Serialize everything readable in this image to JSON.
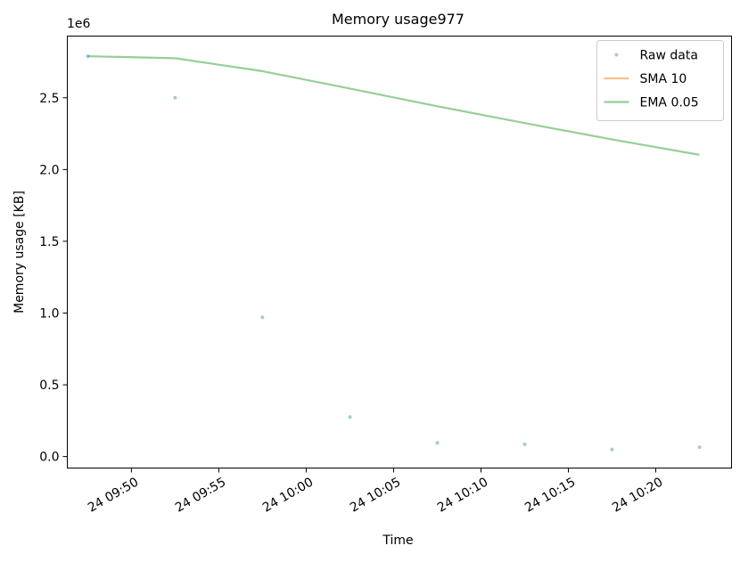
{
  "chart_data": {
    "type": "line",
    "title": "Memory usage977",
    "xlabel": "Time",
    "ylabel": "Memory usage [KB]",
    "y_offset_label": "1e6",
    "y_scale_factor": 1000000,
    "ylim": [
      -80000,
      2930000
    ],
    "xlim": [
      "2024-01-24 09:46:20",
      "2024-01-24 10:24:20"
    ],
    "x_ticks": [
      {
        "t": "2024-01-24 09:50:00",
        "label": "24 09:50"
      },
      {
        "t": "2024-01-24 09:55:00",
        "label": "24 09:55"
      },
      {
        "t": "2024-01-24 10:00:00",
        "label": "24 10:00"
      },
      {
        "t": "2024-01-24 10:05:00",
        "label": "24 10:05"
      },
      {
        "t": "2024-01-24 10:10:00",
        "label": "24 10:10"
      },
      {
        "t": "2024-01-24 10:15:00",
        "label": "24 10:15"
      },
      {
        "t": "2024-01-24 10:20:00",
        "label": "24 10:20"
      }
    ],
    "y_ticks": [
      {
        "v": 0,
        "label": "0.0"
      },
      {
        "v": 500000,
        "label": "0.5"
      },
      {
        "v": 1000000,
        "label": "1.0"
      },
      {
        "v": 1500000,
        "label": "1.5"
      },
      {
        "v": 2000000,
        "label": "2.0"
      },
      {
        "v": 2500000,
        "label": "2.5"
      }
    ],
    "legend_position": "top-right",
    "grid": false,
    "series": [
      {
        "name": "Raw data",
        "kind": "points",
        "color": "#1f77b4",
        "x": [
          "2024-01-24 09:47:30",
          "2024-01-24 09:52:30",
          "2024-01-24 09:57:30",
          "2024-01-24 10:02:30",
          "2024-01-24 10:07:30",
          "2024-01-24 10:12:30",
          "2024-01-24 10:17:30",
          "2024-01-24 10:22:30"
        ],
        "y": [
          2790000,
          2500000,
          970000,
          275000,
          95000,
          85000,
          50000,
          65000
        ]
      },
      {
        "name": "SMA 10",
        "kind": "line",
        "color": "#ff7f0e",
        "x": [],
        "y": []
      },
      {
        "name": "EMA 0.05",
        "kind": "line",
        "color": "#2ca02c",
        "x": [
          "2024-01-24 09:47:30",
          "2024-01-24 09:52:30",
          "2024-01-24 09:57:30",
          "2024-01-24 10:02:30",
          "2024-01-24 10:07:30",
          "2024-01-24 10:12:30",
          "2024-01-24 10:17:30",
          "2024-01-24 10:22:30"
        ],
        "y": [
          2790000,
          2775500,
          2685225,
          2564714,
          2441228,
          2323417,
          2209746,
          2102509
        ]
      }
    ]
  }
}
